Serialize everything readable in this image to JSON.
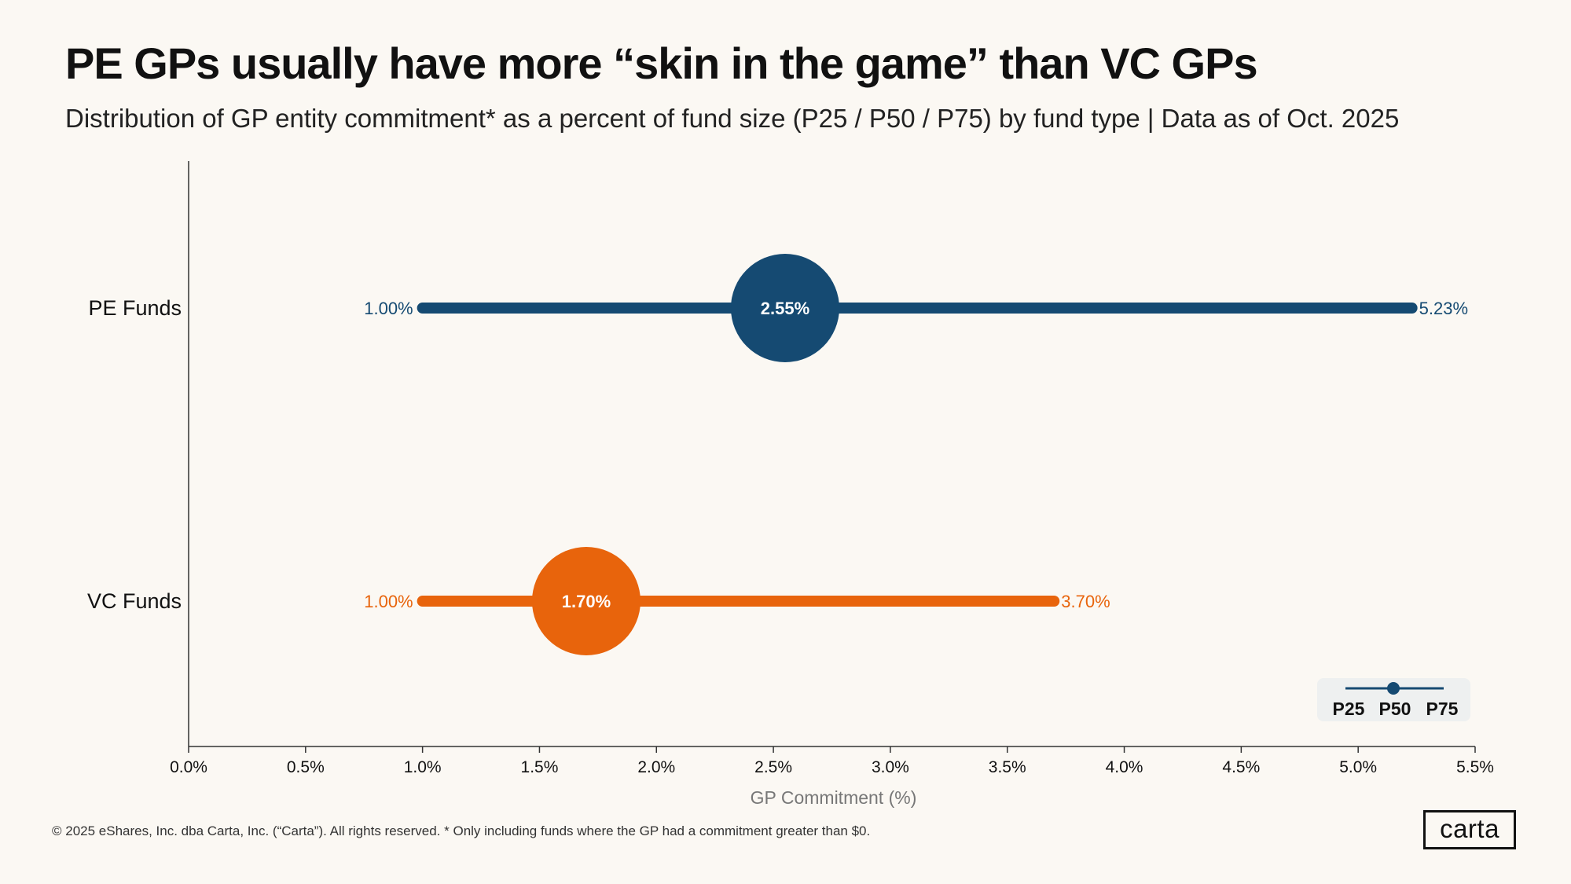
{
  "header": {
    "title": "PE GPs usually have more “skin in the game” than VC GPs",
    "subtitle": "Distribution of GP entity commitment* as a percent of fund size (P25 / P50 / P75) by fund type | Data as of Oct. 2025"
  },
  "chart_data": {
    "type": "dumbbell",
    "xlabel": "GP Commitment (%)",
    "xlim": [
      0,
      5.5
    ],
    "xticks": [
      0.0,
      0.5,
      1.0,
      1.5,
      2.0,
      2.5,
      3.0,
      3.5,
      4.0,
      4.5,
      5.0,
      5.5
    ],
    "xtick_labels": [
      "0.0%",
      "0.5%",
      "1.0%",
      "1.5%",
      "2.0%",
      "2.5%",
      "3.0%",
      "3.5%",
      "4.0%",
      "4.5%",
      "5.0%",
      "5.5%"
    ],
    "series": [
      {
        "name": "PE Funds",
        "color": "#154a72",
        "p25": 1.0,
        "p50": 2.55,
        "p75": 5.23,
        "p25_label": "1.00%",
        "p50_label": "2.55%",
        "p75_label": "5.23%"
      },
      {
        "name": "VC Funds",
        "color": "#e8640c",
        "p25": 1.0,
        "p50": 1.7,
        "p75": 3.7,
        "p25_label": "1.00%",
        "p50_label": "1.70%",
        "p75_label": "3.70%"
      }
    ],
    "legend": {
      "position": "bottom-right",
      "labels": [
        "P25",
        "P50",
        "P75"
      ],
      "color": "#154a72"
    }
  },
  "footer": {
    "copyright": "© 2025 eShares, Inc. dba Carta, Inc. (“Carta”). All rights reserved.  * Only including funds where the GP had a commitment greater than $0.",
    "logo_text": "carta"
  }
}
